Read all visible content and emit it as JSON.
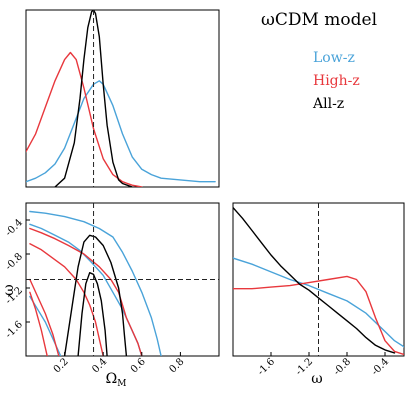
{
  "chart_data": [
    {
      "panel": "omega_m_1d",
      "type": "line",
      "xlabel": "",
      "ylabel": "",
      "xlim": [
        0.0,
        1.0
      ],
      "ylim": [
        0,
        1.0
      ],
      "reference_x": 0.35,
      "series": [
        {
          "name": "Low-z",
          "color": "#4aa3d9",
          "x": [
            0.0,
            0.05,
            0.1,
            0.15,
            0.2,
            0.25,
            0.3,
            0.35,
            0.38,
            0.4,
            0.45,
            0.5,
            0.55,
            0.6,
            0.65,
            0.7,
            0.8,
            0.9,
            0.98
          ],
          "y": [
            0.03,
            0.05,
            0.08,
            0.13,
            0.22,
            0.36,
            0.5,
            0.58,
            0.6,
            0.58,
            0.46,
            0.3,
            0.17,
            0.1,
            0.07,
            0.05,
            0.04,
            0.03,
            0.03
          ]
        },
        {
          "name": "High-z",
          "color": "#e8383d",
          "x": [
            0.0,
            0.05,
            0.1,
            0.15,
            0.2,
            0.23,
            0.26,
            0.3,
            0.35,
            0.4,
            0.45,
            0.5,
            0.55,
            0.6
          ],
          "y": [
            0.2,
            0.3,
            0.45,
            0.6,
            0.72,
            0.76,
            0.72,
            0.56,
            0.33,
            0.16,
            0.07,
            0.03,
            0.01,
            0.0
          ]
        },
        {
          "name": "All-z",
          "color": "#000000",
          "x": [
            0.15,
            0.2,
            0.25,
            0.28,
            0.3,
            0.32,
            0.34,
            0.35,
            0.36,
            0.38,
            0.4,
            0.42,
            0.45,
            0.48,
            0.5,
            0.55
          ],
          "y": [
            0.0,
            0.05,
            0.25,
            0.5,
            0.72,
            0.9,
            0.99,
            1.0,
            0.98,
            0.85,
            0.58,
            0.35,
            0.14,
            0.04,
            0.02,
            0.0
          ]
        }
      ]
    },
    {
      "panel": "omega_m_vs_w",
      "type": "line",
      "xlabel": "Ω_M",
      "ylabel": "ω",
      "xlim": [
        0.0,
        1.0
      ],
      "ylim": [
        -2.0,
        -0.2
      ],
      "xticks": [
        "0.2",
        "0.4",
        "0.6",
        "0.8"
      ],
      "yticks": [
        "-0.4",
        "-0.8",
        "-1.2",
        "-1.6"
      ],
      "reference_x": 0.35,
      "reference_y": -1.1,
      "series": [
        {
          "name": "Low-z",
          "color": "#4aa3d9",
          "x": [
            0.02,
            0.1,
            0.2,
            0.3,
            0.38,
            0.45,
            0.5,
            0.55,
            0.6,
            0.65,
            0.68,
            0.7
          ],
          "y": [
            -0.3,
            -0.32,
            -0.36,
            -0.42,
            -0.5,
            -0.6,
            -0.78,
            -1.0,
            -1.25,
            -1.55,
            -1.8,
            -2.0
          ]
        },
        {
          "name": "Low-z",
          "color": "#4aa3d9",
          "x": [
            0.02,
            0.08,
            0.15,
            0.22,
            0.28,
            0.34,
            0.4,
            0.45,
            0.5,
            0.54,
            0.58,
            0.6
          ],
          "y": [
            -0.45,
            -0.5,
            -0.58,
            -0.66,
            -0.76,
            -0.9,
            -1.05,
            -1.25,
            -1.45,
            -1.65,
            -1.85,
            -2.0
          ]
        },
        {
          "name": "Low-z",
          "color": "#4aa3d9",
          "x": [
            0.02,
            0.06,
            0.1,
            0.14,
            0.18
          ],
          "y": [
            -1.3,
            -1.45,
            -1.6,
            -1.8,
            -2.0
          ]
        },
        {
          "name": "High-z",
          "color": "#e8383d",
          "x": [
            0.02,
            0.08,
            0.15,
            0.22,
            0.3,
            0.38,
            0.44,
            0.48,
            0.5,
            0.52,
            0.55,
            0.58,
            0.6
          ],
          "y": [
            -0.5,
            -0.55,
            -0.62,
            -0.7,
            -0.8,
            -0.95,
            -1.1,
            -1.25,
            -1.4,
            -1.55,
            -1.7,
            -1.85,
            -2.0
          ]
        },
        {
          "name": "High-z",
          "color": "#e8383d",
          "x": [
            0.02,
            0.08,
            0.14,
            0.2,
            0.26,
            0.3,
            0.33,
            0.36,
            0.38,
            0.4
          ],
          "y": [
            -0.68,
            -0.75,
            -0.85,
            -0.95,
            -1.1,
            -1.25,
            -1.4,
            -1.6,
            -1.8,
            -2.0
          ]
        },
        {
          "name": "High-z",
          "color": "#e8383d",
          "x": [
            0.02,
            0.06,
            0.1,
            0.14,
            0.17
          ],
          "y": [
            -1.1,
            -1.3,
            -1.5,
            -1.75,
            -2.0
          ]
        },
        {
          "name": "High-z",
          "color": "#e8383d",
          "x": [
            0.02,
            0.05,
            0.08,
            0.11
          ],
          "y": [
            -1.25,
            -1.45,
            -1.7,
            -2.0
          ]
        },
        {
          "name": "All-z",
          "color": "#000000",
          "x": [
            0.2,
            0.24,
            0.27,
            0.3,
            0.33,
            0.36,
            0.4,
            0.44,
            0.48,
            0.5,
            0.51,
            0.52
          ],
          "y": [
            -2.0,
            -1.4,
            -0.95,
            -0.66,
            -0.58,
            -0.6,
            -0.7,
            -0.9,
            -1.2,
            -1.5,
            -1.75,
            -2.0
          ]
        },
        {
          "name": "All-z",
          "color": "#000000",
          "x": [
            0.27,
            0.29,
            0.31,
            0.33,
            0.35,
            0.37,
            0.39,
            0.41,
            0.42
          ],
          "y": [
            -2.0,
            -1.5,
            -1.15,
            -1.02,
            -1.04,
            -1.15,
            -1.35,
            -1.7,
            -2.0
          ]
        }
      ]
    },
    {
      "panel": "w_1d",
      "type": "line",
      "xlabel": "ω",
      "ylabel": "",
      "xlim": [
        -2.0,
        -0.2
      ],
      "ylim": [
        0,
        1.0
      ],
      "xticks": [
        "-1.6",
        "-1.2",
        "-0.8",
        "-0.4"
      ],
      "reference_x": -1.1,
      "series": [
        {
          "name": "Low-z",
          "color": "#4aa3d9",
          "x": [
            -2.0,
            -1.8,
            -1.6,
            -1.4,
            -1.2,
            -1.0,
            -0.8,
            -0.6,
            -0.4,
            -0.3,
            -0.2
          ],
          "y": [
            0.64,
            0.6,
            0.55,
            0.5,
            0.46,
            0.41,
            0.36,
            0.28,
            0.16,
            0.1,
            0.06
          ]
        },
        {
          "name": "High-z",
          "color": "#e8383d",
          "x": [
            -2.0,
            -1.8,
            -1.6,
            -1.4,
            -1.2,
            -1.0,
            -0.8,
            -0.7,
            -0.6,
            -0.5,
            -0.4,
            -0.3,
            -0.2
          ],
          "y": [
            0.44,
            0.44,
            0.45,
            0.46,
            0.48,
            0.5,
            0.52,
            0.5,
            0.42,
            0.25,
            0.1,
            0.03,
            0.01
          ]
        },
        {
          "name": "All-z",
          "color": "#000000",
          "x": [
            -2.0,
            -1.9,
            -1.8,
            -1.7,
            -1.6,
            -1.5,
            -1.4,
            -1.3,
            -1.2,
            -1.1,
            -1.0,
            -0.9,
            -0.8,
            -0.7,
            -0.6,
            -0.5,
            -0.4,
            -0.3
          ],
          "y": [
            0.97,
            0.9,
            0.82,
            0.74,
            0.66,
            0.59,
            0.53,
            0.47,
            0.43,
            0.38,
            0.33,
            0.28,
            0.23,
            0.18,
            0.12,
            0.07,
            0.04,
            0.02
          ]
        }
      ]
    }
  ],
  "legend": {
    "title": "ωCDM model",
    "entries": [
      {
        "label": "Low-z",
        "color": "#4aa3d9"
      },
      {
        "label": "High-z",
        "color": "#e8383d"
      },
      {
        "label": "All-z",
        "color": "#000000"
      }
    ]
  }
}
